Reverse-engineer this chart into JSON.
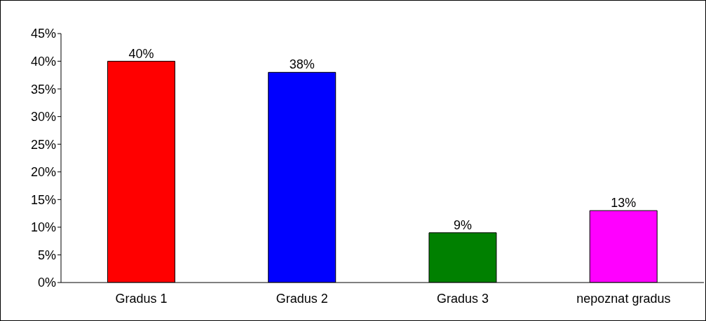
{
  "chart_data": {
    "type": "bar",
    "categories": [
      "Gradus 1",
      "Gradus 2",
      "Gradus 3",
      "nepoznat gradus"
    ],
    "values": [
      40,
      38,
      9,
      13
    ],
    "colors": [
      "#ff0000",
      "#0000ff",
      "#008000",
      "#ff00ff"
    ],
    "ylim": [
      0,
      45
    ],
    "yticks": [
      {
        "value": 0,
        "label": "0%"
      },
      {
        "value": 5,
        "label": "5%"
      },
      {
        "value": 10,
        "label": "10%"
      },
      {
        "value": 15,
        "label": "15%"
      },
      {
        "value": 20,
        "label": "20%"
      },
      {
        "value": 25,
        "label": "25%"
      },
      {
        "value": 30,
        "label": "30%"
      },
      {
        "value": 35,
        "label": "35%"
      },
      {
        "value": 40,
        "label": "40%"
      },
      {
        "value": 45,
        "label": "45%"
      }
    ],
    "value_labels": [
      "40%",
      "38%",
      "9%",
      "13%"
    ],
    "grid": false,
    "legend": false
  }
}
